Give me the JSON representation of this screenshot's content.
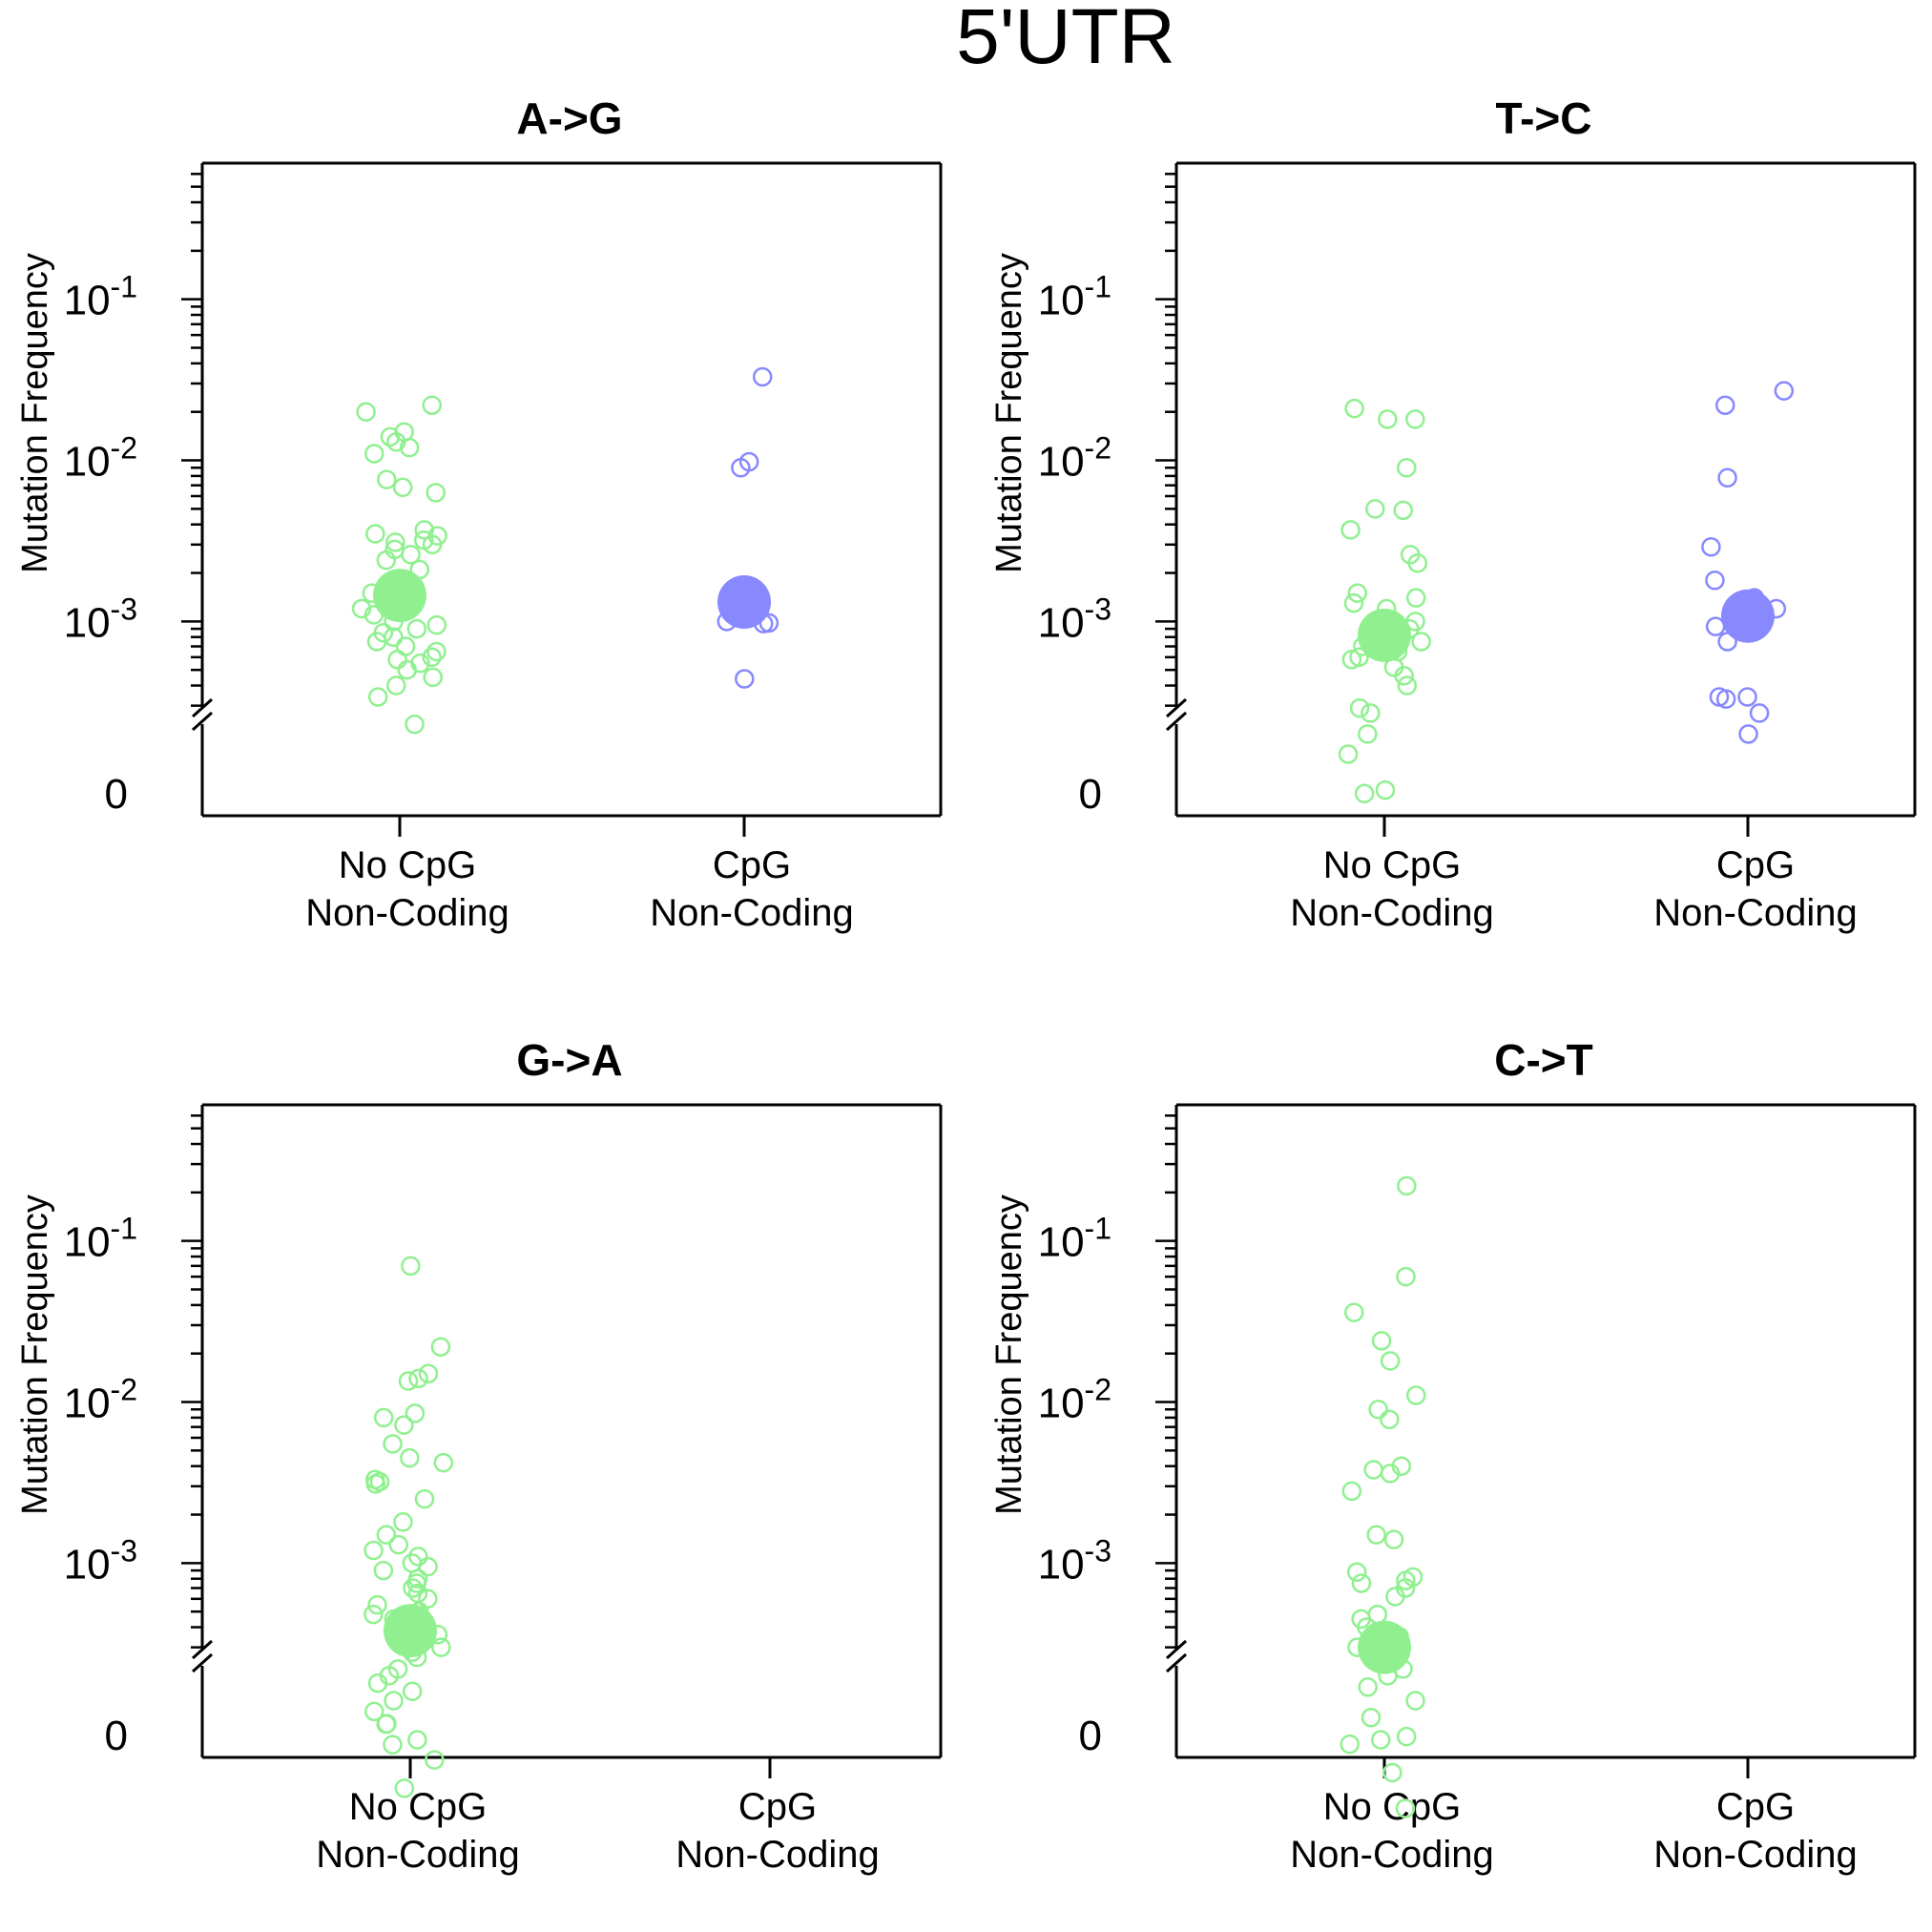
{
  "figure_title": "5'UTR",
  "colors": {
    "no_cpg": "#90f090",
    "cpg": "#8888ff",
    "axis": "#000000"
  },
  "chart_data": [
    {
      "type": "scatter",
      "title": "A->G",
      "ylabel": "Mutation Frequency",
      "y_scale": "log10 with broken axis at 0",
      "ylim": [
        0.00025,
        0.7
      ],
      "y_ticks": [
        {
          "exp": "-1",
          "value": 0.1
        },
        {
          "exp": "-2",
          "value": 0.01
        },
        {
          "exp": "-3",
          "value": 0.001
        }
      ],
      "zero_label": "0",
      "categories": [
        {
          "line1": "No CpG",
          "line2": "Non-Coding"
        },
        {
          "line1": "CpG",
          "line2": "Non-Coding"
        }
      ],
      "series": [
        {
          "category": 0,
          "color": "no_cpg",
          "mean": 0.00145,
          "points": [
            0.022,
            0.02,
            0.015,
            0.014,
            0.013,
            0.012,
            0.011,
            0.0076,
            0.0068,
            0.0063,
            0.0037,
            0.0035,
            0.0034,
            0.0032,
            0.0031,
            0.003,
            0.0028,
            0.0026,
            0.0024,
            0.0021,
            0.0018,
            0.0017,
            0.0016,
            0.0015,
            0.0014,
            0.0013,
            0.0012,
            0.0011,
            0.001,
            0.00095,
            0.0009,
            0.00085,
            0.0008,
            0.00075,
            0.0007,
            0.00065,
            0.0006,
            0.00058,
            0.00055,
            0.0005,
            0.00045,
            0.0004,
            0.00034,
            0.00023
          ]
        },
        {
          "category": 1,
          "color": "cpg",
          "mean": 0.00132,
          "points": [
            0.033,
            0.0098,
            0.009,
            0.001,
            0.00098,
            0.00097,
            0.00044
          ]
        }
      ]
    },
    {
      "type": "scatter",
      "title": "T->C",
      "ylabel": "Mutation Frequency",
      "y_scale": "log10 with broken axis at 0",
      "ylim": [
        0.00025,
        0.7
      ],
      "y_ticks": [
        {
          "exp": "-1",
          "value": 0.1
        },
        {
          "exp": "-2",
          "value": 0.01
        },
        {
          "exp": "-3",
          "value": 0.001
        }
      ],
      "zero_label": "0",
      "categories": [
        {
          "line1": "No CpG",
          "line2": "Non-Coding"
        },
        {
          "line1": "CpG",
          "line2": "Non-Coding"
        }
      ],
      "series": [
        {
          "category": 0,
          "color": "no_cpg",
          "mean": 0.00082,
          "points": [
            0.021,
            0.018,
            0.018,
            0.009,
            0.005,
            0.0049,
            0.0037,
            0.0026,
            0.0023,
            0.0015,
            0.0014,
            0.0013,
            0.0012,
            0.001,
            0.00097,
            0.00093,
            0.0009,
            0.0008,
            0.00075,
            0.0007,
            0.00065,
            0.0006,
            0.00058,
            0.00052,
            0.00046,
            0.0004,
            0.00029,
            0.00027,
            0.0002,
            0.00015,
            0.0,
            0.0
          ]
        },
        {
          "category": 1,
          "color": "cpg",
          "mean": 0.00108,
          "points": [
            0.027,
            0.022,
            0.0078,
            0.0029,
            0.0018,
            0.0014,
            0.0012,
            0.00098,
            0.00093,
            0.00092,
            0.00075,
            0.00034,
            0.00034,
            0.00033,
            0.00027,
            0.0002
          ]
        }
      ]
    },
    {
      "type": "scatter",
      "title": "G->A",
      "ylabel": "Mutation Frequency",
      "y_scale": "log10 with broken axis at 0",
      "ylim": [
        0.00025,
        0.7
      ],
      "y_ticks": [
        {
          "exp": "-1",
          "value": 0.1
        },
        {
          "exp": "-2",
          "value": 0.01
        },
        {
          "exp": "-3",
          "value": 0.001
        }
      ],
      "zero_label": "0",
      "categories": [
        {
          "line1": "No CpG",
          "line2": "Non-Coding"
        },
        {
          "line1": "CpG",
          "line2": "Non-Coding"
        }
      ],
      "series": [
        {
          "category": 0,
          "color": "no_cpg",
          "mean": 0.00038,
          "points": [
            0.07,
            0.022,
            0.015,
            0.014,
            0.0135,
            0.0085,
            0.008,
            0.0072,
            0.0055,
            0.0045,
            0.0042,
            0.0033,
            0.0032,
            0.0031,
            0.0025,
            0.0018,
            0.0015,
            0.0013,
            0.0012,
            0.0011,
            0.001,
            0.00095,
            0.0009,
            0.0008,
            0.00075,
            0.0007,
            0.00065,
            0.0006,
            0.00055,
            0.0005,
            0.00048,
            0.00045,
            0.0004,
            0.00036,
            0.00033,
            0.0003,
            0.00028,
            0.00026,
            0.00022,
            0.0002,
            0.00018,
            0.00016,
            0.00014,
            0.00012,
            0.0001,
            8e-05,
            6e-05,
            4e-05,
            0.0,
            0.0
          ]
        }
      ]
    },
    {
      "type": "scatter",
      "title": "C->T",
      "ylabel": "Mutation Frequency",
      "y_scale": "log10 with broken axis at 0",
      "ylim": [
        0.00025,
        0.7
      ],
      "y_ticks": [
        {
          "exp": "-1",
          "value": 0.1
        },
        {
          "exp": "-2",
          "value": 0.01
        },
        {
          "exp": "-3",
          "value": 0.001
        }
      ],
      "zero_label": "0",
      "categories": [
        {
          "line1": "No CpG",
          "line2": "Non-Coding"
        },
        {
          "line1": "CpG",
          "line2": "Non-Coding"
        }
      ],
      "series": [
        {
          "category": 0,
          "color": "no_cpg",
          "mean": 0.0003,
          "points": [
            0.22,
            0.06,
            0.036,
            0.024,
            0.018,
            0.011,
            0.009,
            0.0078,
            0.004,
            0.0038,
            0.0036,
            0.0028,
            0.0015,
            0.0014,
            0.00088,
            0.00082,
            0.00078,
            0.00075,
            0.0007,
            0.00062,
            0.00048,
            0.00045,
            0.0004,
            0.00035,
            0.0003,
            0.00026,
            0.00022,
            0.0002,
            0.00017,
            0.00014,
            0.00011,
            8e-05,
            5e-05,
            3e-05,
            0.0,
            0.0
          ]
        }
      ]
    }
  ]
}
